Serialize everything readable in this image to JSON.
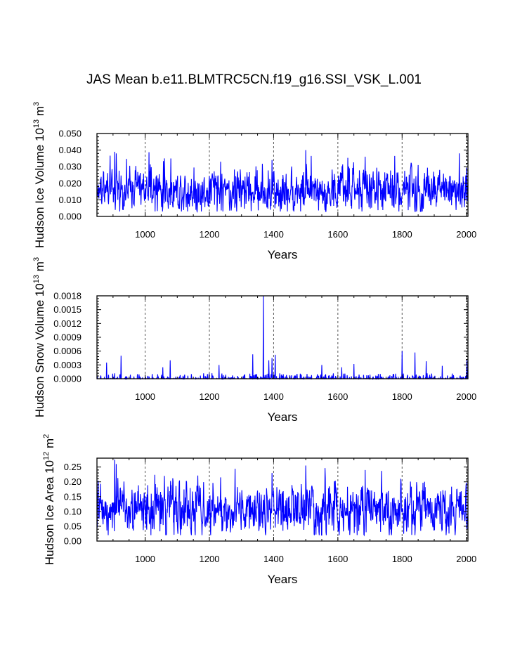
{
  "title": "JAS Mean b.e11.BLMTRC5CN.f19_g16.SSI_VSK_L.001",
  "chart_data": [
    {
      "type": "line",
      "xlabel": "Years",
      "ylabel_main": "Hudson Ice Volume 10",
      "ylabel_exp": "13",
      "ylabel_unit": " m",
      "ylabel_unit_exp": "3",
      "xlim": [
        850,
        2005
      ],
      "ylim": [
        0.0,
        0.05
      ],
      "xticks": [
        1000,
        1200,
        1400,
        1600,
        1800,
        2000
      ],
      "xtick_labels": [
        "1000",
        "1200",
        "1400",
        "1600",
        "1800",
        "2000"
      ],
      "yticks": [
        0.0,
        0.01,
        0.02,
        0.03,
        0.04,
        0.05
      ],
      "ytick_labels": [
        "0.000",
        "0.010",
        "0.020",
        "0.030",
        "0.040",
        "0.050"
      ],
      "gridlines_x": [
        1000,
        1200,
        1400,
        1600,
        1800,
        2000
      ],
      "line_color": "#0000ff",
      "series": [
        {
          "x_start": 850,
          "x_step": 1,
          "base": 0.0155,
          "amp": 0.0062,
          "min": 0.003,
          "peaks": [
            [
              905,
              0.039
            ],
            [
              910,
              0.038
            ],
            [
              1060,
              0.035
            ],
            [
              1500,
              0.04
            ],
            [
              1685,
              0.036
            ],
            [
              1395,
              0.034
            ],
            [
              1235,
              0.033
            ],
            [
              1850,
              0.031
            ]
          ]
        }
      ]
    },
    {
      "type": "line",
      "xlabel": "Years",
      "ylabel_main": "Hudson Snow Volume 10",
      "ylabel_exp": "13",
      "ylabel_unit": " m",
      "ylabel_unit_exp": "3",
      "xlim": [
        850,
        2005
      ],
      "ylim": [
        0.0,
        0.0018
      ],
      "xticks": [
        1000,
        1200,
        1400,
        1600,
        1800,
        2000
      ],
      "xtick_labels": [
        "1000",
        "1200",
        "1400",
        "1600",
        "1800",
        "2000"
      ],
      "yticks": [
        0.0,
        0.0003,
        0.0006,
        0.0009,
        0.0012,
        0.0015,
        0.0018
      ],
      "ytick_labels": [
        "0.0000",
        "0.0003",
        "0.0006",
        "0.0009",
        "0.0012",
        "0.0015",
        "0.0018"
      ],
      "gridlines_x": [
        1000,
        1200,
        1400,
        1600,
        1800,
        2000
      ],
      "line_color": "#0000ff",
      "series": [
        {
          "x_start": 850,
          "x_step": 1,
          "base": 0.0,
          "amp": 4e-05,
          "min": 0.0,
          "spikes": [
            [
              1368,
              0.0018
            ],
            [
              1335,
              0.00053
            ],
            [
              1405,
              0.00052
            ],
            [
              1800,
              0.0006
            ],
            [
              1840,
              0.00057
            ],
            [
              925,
              0.0005
            ],
            [
              1078,
              0.0004
            ],
            [
              2002,
              0.0004
            ],
            [
              1550,
              0.0003
            ],
            [
              1925,
              0.00028
            ],
            [
              880,
              0.00035
            ],
            [
              1055,
              0.00025
            ],
            [
              1230,
              0.0003
            ],
            [
              1395,
              0.00045
            ],
            [
              1385,
              0.0004
            ],
            [
              1650,
              0.00032
            ],
            [
              1875,
              0.00038
            ],
            [
              1612,
              0.00025
            ]
          ]
        }
      ]
    },
    {
      "type": "line",
      "xlabel": "Years",
      "ylabel_main": "Hudson Ice Area 10",
      "ylabel_exp": "12",
      "ylabel_unit": " m",
      "ylabel_unit_exp": "2",
      "xlim": [
        850,
        2005
      ],
      "ylim": [
        0.0,
        0.28
      ],
      "xticks": [
        1000,
        1200,
        1400,
        1600,
        1800,
        2000
      ],
      "xtick_labels": [
        "1000",
        "1200",
        "1400",
        "1600",
        "1800",
        "2000"
      ],
      "yticks": [
        0.0,
        0.05,
        0.1,
        0.15,
        0.2,
        0.25
      ],
      "ytick_labels": [
        "0.00",
        "0.05",
        "0.10",
        "0.15",
        "0.20",
        "0.25"
      ],
      "gridlines_x": [
        1000,
        1200,
        1400,
        1600,
        1800,
        2000
      ],
      "line_color": "#0000ff",
      "series": [
        {
          "x_start": 850,
          "x_step": 1,
          "base": 0.105,
          "amp": 0.038,
          "min": 0.02,
          "peaks": [
            [
              905,
              0.275
            ],
            [
              910,
              0.26
            ],
            [
              1500,
              0.255
            ],
            [
              1685,
              0.24
            ],
            [
              1395,
              0.23
            ],
            [
              1060,
              0.22
            ],
            [
              1235,
              0.215
            ]
          ]
        }
      ]
    }
  ]
}
